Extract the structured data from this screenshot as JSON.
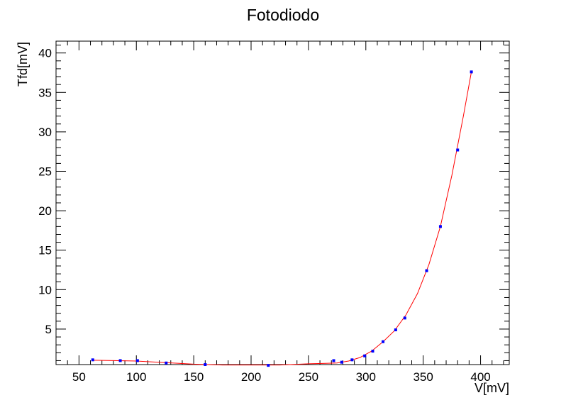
{
  "chart_data": {
    "type": "scatter",
    "title": "Fotodiodo",
    "xlabel": "V[mV]",
    "ylabel": "Tfd[mV]",
    "xlim": [
      30,
      425
    ],
    "ylim": [
      0.5,
      41.5
    ],
    "xticks": [
      "50",
      "100",
      "150",
      "200",
      "250",
      "300",
      "350",
      "400"
    ],
    "yticks": [
      "5",
      "10",
      "15",
      "20",
      "25",
      "30",
      "35",
      "40"
    ],
    "grid": false,
    "colors": {
      "points": "#0000ff",
      "fit": "#ff0000",
      "frame": "#000000"
    },
    "series": [
      {
        "marker": "square",
        "x": [
          62,
          86,
          101,
          126,
          160,
          215,
          272,
          279,
          288,
          299,
          306,
          315,
          326,
          334,
          353,
          365,
          380,
          392
        ],
        "y": [
          1.1,
          1.0,
          1.0,
          0.7,
          0.5,
          0.4,
          1.0,
          0.8,
          1.1,
          1.6,
          2.2,
          3.4,
          4.9,
          6.4,
          12.4,
          18.0,
          27.7,
          37.6
        ]
      }
    ],
    "fit_curve": {
      "x": [
        62,
        80,
        100,
        125,
        150,
        175,
        200,
        225,
        250,
        265,
        275,
        285,
        295,
        305,
        315,
        325,
        335,
        345,
        355,
        365,
        375,
        385,
        392
      ],
      "y": [
        1.05,
        1.0,
        0.95,
        0.75,
        0.55,
        0.45,
        0.45,
        0.45,
        0.6,
        0.65,
        0.7,
        0.95,
        1.4,
        2.2,
        3.4,
        4.8,
        6.8,
        9.5,
        13.2,
        18.0,
        24.5,
        32.0,
        37.6
      ]
    }
  }
}
